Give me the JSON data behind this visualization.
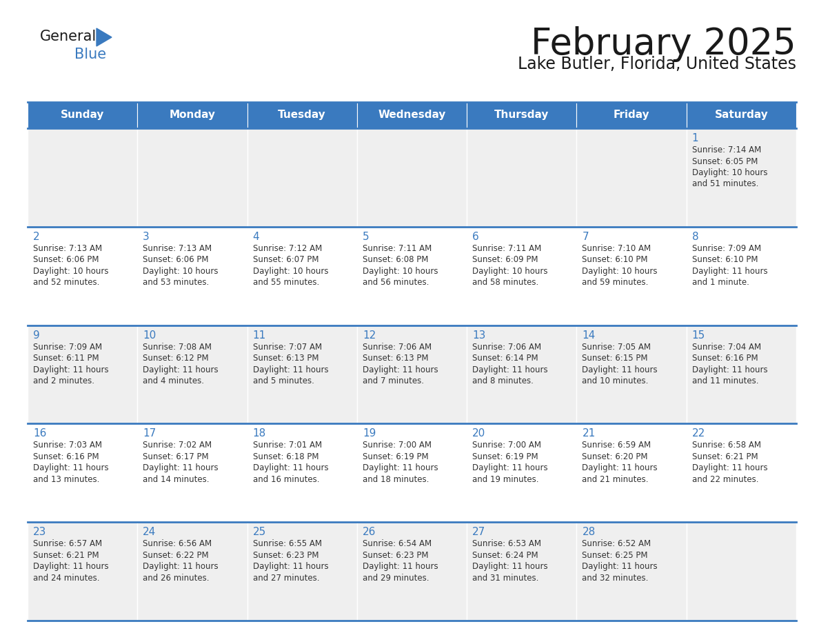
{
  "title": "February 2025",
  "subtitle": "Lake Butler, Florida, United States",
  "header_color": "#3a7abf",
  "header_text_color": "#ffffff",
  "cell_bg_color": "#efefef",
  "cell_bg_white": "#ffffff",
  "day_number_color": "#3a7abf",
  "text_color": "#333333",
  "line_color": "#3a7abf",
  "days_of_week": [
    "Sunday",
    "Monday",
    "Tuesday",
    "Wednesday",
    "Thursday",
    "Friday",
    "Saturday"
  ],
  "calendar": [
    [
      null,
      null,
      null,
      null,
      null,
      null,
      {
        "day": 1,
        "sunrise": "7:14 AM",
        "sunset": "6:05 PM",
        "daylight": "10 hours\nand 51 minutes."
      }
    ],
    [
      {
        "day": 2,
        "sunrise": "7:13 AM",
        "sunset": "6:06 PM",
        "daylight": "10 hours\nand 52 minutes."
      },
      {
        "day": 3,
        "sunrise": "7:13 AM",
        "sunset": "6:06 PM",
        "daylight": "10 hours\nand 53 minutes."
      },
      {
        "day": 4,
        "sunrise": "7:12 AM",
        "sunset": "6:07 PM",
        "daylight": "10 hours\nand 55 minutes."
      },
      {
        "day": 5,
        "sunrise": "7:11 AM",
        "sunset": "6:08 PM",
        "daylight": "10 hours\nand 56 minutes."
      },
      {
        "day": 6,
        "sunrise": "7:11 AM",
        "sunset": "6:09 PM",
        "daylight": "10 hours\nand 58 minutes."
      },
      {
        "day": 7,
        "sunrise": "7:10 AM",
        "sunset": "6:10 PM",
        "daylight": "10 hours\nand 59 minutes."
      },
      {
        "day": 8,
        "sunrise": "7:09 AM",
        "sunset": "6:10 PM",
        "daylight": "11 hours\nand 1 minute."
      }
    ],
    [
      {
        "day": 9,
        "sunrise": "7:09 AM",
        "sunset": "6:11 PM",
        "daylight": "11 hours\nand 2 minutes."
      },
      {
        "day": 10,
        "sunrise": "7:08 AM",
        "sunset": "6:12 PM",
        "daylight": "11 hours\nand 4 minutes."
      },
      {
        "day": 11,
        "sunrise": "7:07 AM",
        "sunset": "6:13 PM",
        "daylight": "11 hours\nand 5 minutes."
      },
      {
        "day": 12,
        "sunrise": "7:06 AM",
        "sunset": "6:13 PM",
        "daylight": "11 hours\nand 7 minutes."
      },
      {
        "day": 13,
        "sunrise": "7:06 AM",
        "sunset": "6:14 PM",
        "daylight": "11 hours\nand 8 minutes."
      },
      {
        "day": 14,
        "sunrise": "7:05 AM",
        "sunset": "6:15 PM",
        "daylight": "11 hours\nand 10 minutes."
      },
      {
        "day": 15,
        "sunrise": "7:04 AM",
        "sunset": "6:16 PM",
        "daylight": "11 hours\nand 11 minutes."
      }
    ],
    [
      {
        "day": 16,
        "sunrise": "7:03 AM",
        "sunset": "6:16 PM",
        "daylight": "11 hours\nand 13 minutes."
      },
      {
        "day": 17,
        "sunrise": "7:02 AM",
        "sunset": "6:17 PM",
        "daylight": "11 hours\nand 14 minutes."
      },
      {
        "day": 18,
        "sunrise": "7:01 AM",
        "sunset": "6:18 PM",
        "daylight": "11 hours\nand 16 minutes."
      },
      {
        "day": 19,
        "sunrise": "7:00 AM",
        "sunset": "6:19 PM",
        "daylight": "11 hours\nand 18 minutes."
      },
      {
        "day": 20,
        "sunrise": "7:00 AM",
        "sunset": "6:19 PM",
        "daylight": "11 hours\nand 19 minutes."
      },
      {
        "day": 21,
        "sunrise": "6:59 AM",
        "sunset": "6:20 PM",
        "daylight": "11 hours\nand 21 minutes."
      },
      {
        "day": 22,
        "sunrise": "6:58 AM",
        "sunset": "6:21 PM",
        "daylight": "11 hours\nand 22 minutes."
      }
    ],
    [
      {
        "day": 23,
        "sunrise": "6:57 AM",
        "sunset": "6:21 PM",
        "daylight": "11 hours\nand 24 minutes."
      },
      {
        "day": 24,
        "sunrise": "6:56 AM",
        "sunset": "6:22 PM",
        "daylight": "11 hours\nand 26 minutes."
      },
      {
        "day": 25,
        "sunrise": "6:55 AM",
        "sunset": "6:23 PM",
        "daylight": "11 hours\nand 27 minutes."
      },
      {
        "day": 26,
        "sunrise": "6:54 AM",
        "sunset": "6:23 PM",
        "daylight": "11 hours\nand 29 minutes."
      },
      {
        "day": 27,
        "sunrise": "6:53 AM",
        "sunset": "6:24 PM",
        "daylight": "11 hours\nand 31 minutes."
      },
      {
        "day": 28,
        "sunrise": "6:52 AM",
        "sunset": "6:25 PM",
        "daylight": "11 hours\nand 32 minutes."
      },
      null
    ]
  ]
}
